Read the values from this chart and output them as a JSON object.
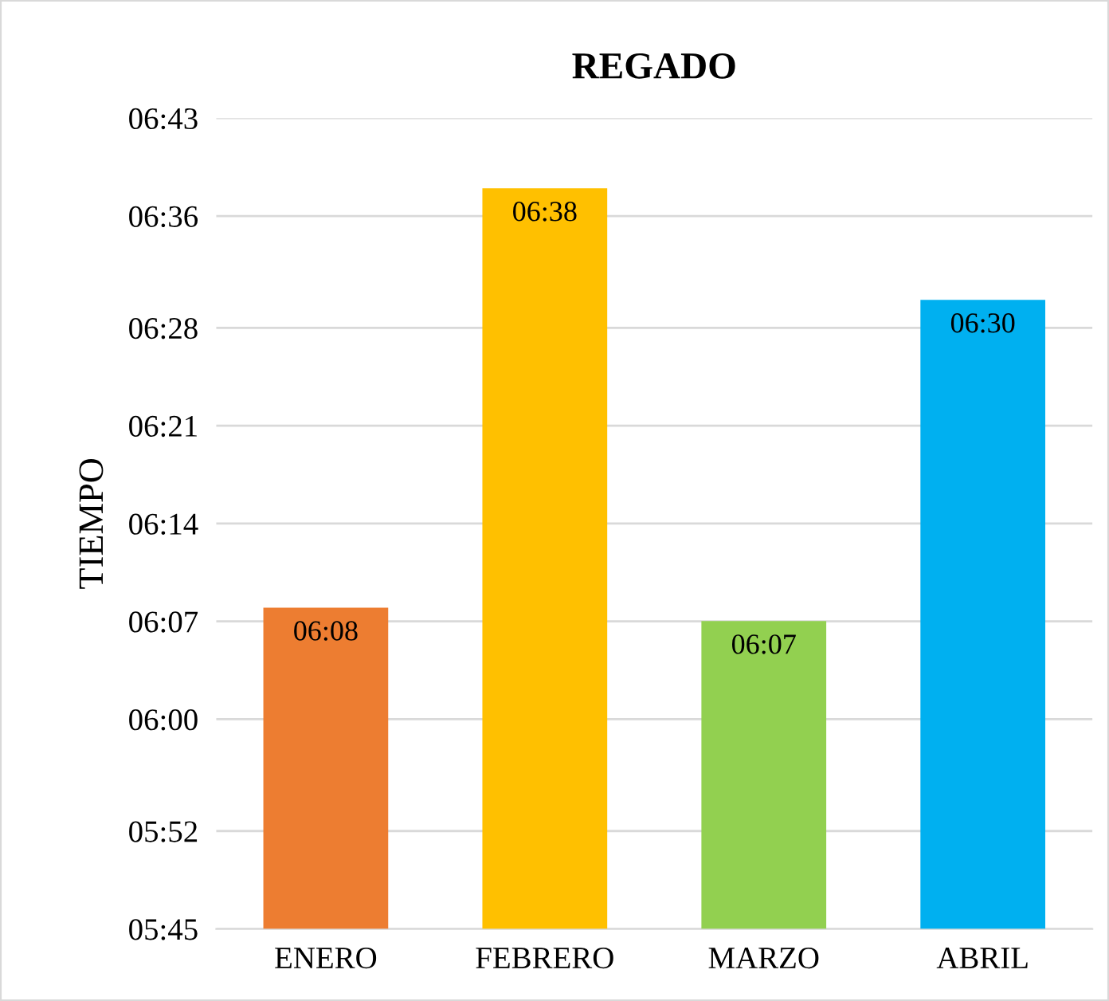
{
  "chart_data": {
    "type": "bar",
    "title": "REGADO",
    "ylabel": "TIEMPO",
    "categories": [
      "ENERO",
      "FEBRERO",
      "MARZO",
      "ABRIL"
    ],
    "values": [
      6.133,
      6.633,
      6.117,
      6.5
    ],
    "value_labels": [
      "06:08",
      "06:38",
      "06:07",
      "06:30"
    ],
    "colors": [
      "#ed7d31",
      "#ffc000",
      "#92d050",
      "#00b0f0"
    ],
    "ylim": [
      5.75,
      6.7167
    ],
    "yticks": [
      {
        "value": 5.75,
        "label": "05:45"
      },
      {
        "value": 5.8667,
        "label": "05:52"
      },
      {
        "value": 6.0,
        "label": "06:00"
      },
      {
        "value": 6.1167,
        "label": "06:07"
      },
      {
        "value": 6.2333,
        "label": "06:14"
      },
      {
        "value": 6.35,
        "label": "06:21"
      },
      {
        "value": 6.4667,
        "label": "06:28"
      },
      {
        "value": 6.6,
        "label": "06:36"
      },
      {
        "value": 6.7167,
        "label": "06:43"
      }
    ],
    "grid": "y",
    "legend": false
  }
}
